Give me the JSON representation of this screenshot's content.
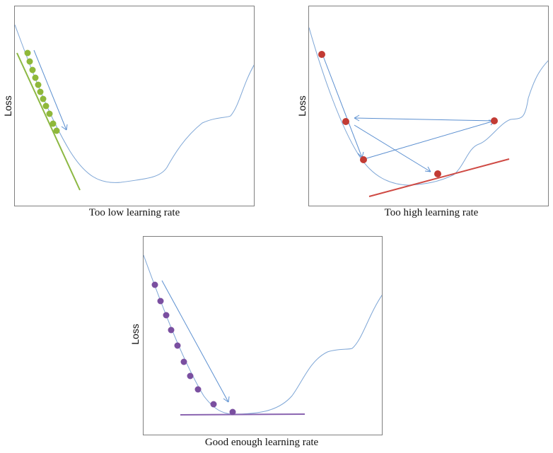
{
  "colors": {
    "frame": "#7f7f7f",
    "loss_curve": "#7ea6d6",
    "arrow": "#5b8fd0",
    "green": "#8fb83a",
    "green_line": "#8cb843",
    "red": "#c23b34",
    "red_line": "#cf4a44",
    "purple": "#7a4fa0",
    "purple_line": "#8a64b0"
  },
  "panels": [
    {
      "id": "low",
      "ylabel": "Loss",
      "caption": "Too low learning rate",
      "marker_color": "green"
    },
    {
      "id": "high",
      "ylabel": "Loss",
      "caption": "Too high learning rate",
      "marker_color": "red"
    },
    {
      "id": "good",
      "ylabel": "Loss",
      "caption": "Good enough learning rate",
      "marker_color": "purple"
    }
  ]
}
